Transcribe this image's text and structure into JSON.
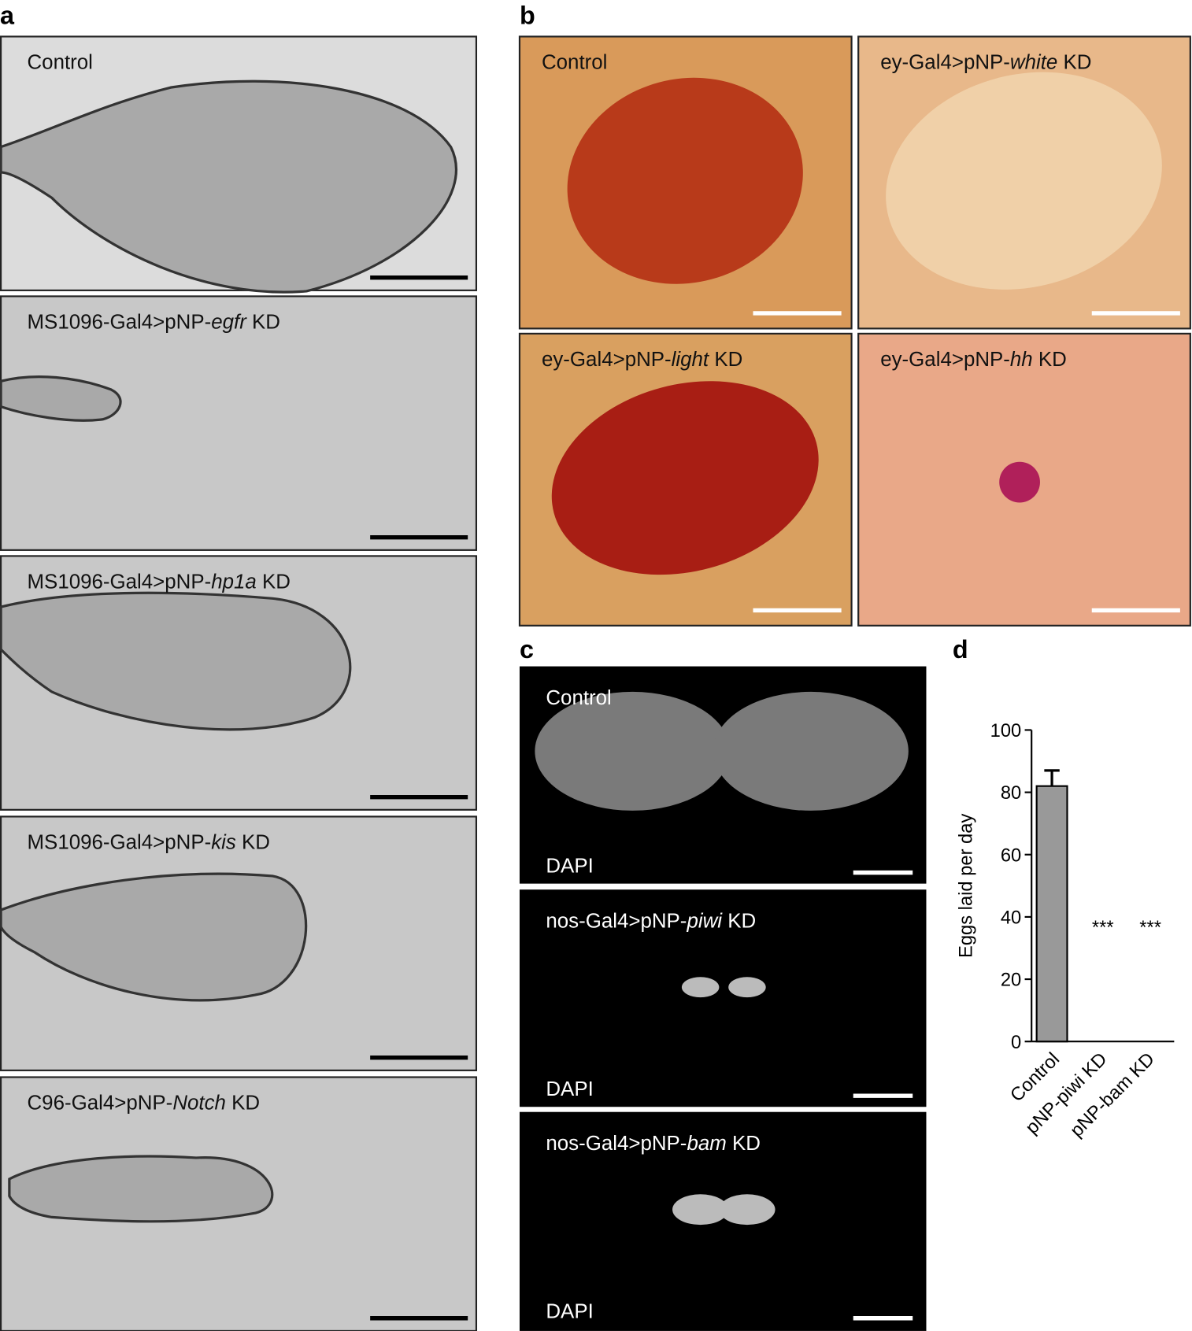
{
  "panel_a": {
    "label": "a",
    "images": [
      {
        "caption": {
          "text": "Control"
        }
      },
      {
        "caption": {
          "prefix": "MS1096-Gal4>pNP-",
          "gene": "egfr",
          "suffix": " KD"
        }
      },
      {
        "caption": {
          "prefix": "MS1096-Gal4>pNP-",
          "gene": "hp1a",
          "suffix": " KD"
        }
      },
      {
        "caption": {
          "prefix": "MS1096-Gal4>pNP-",
          "gene": "kis",
          "suffix": " KD"
        }
      },
      {
        "caption": {
          "prefix": "C96-Gal4>pNP-",
          "gene": "Notch",
          "suffix": " KD"
        }
      }
    ]
  },
  "panel_b": {
    "label": "b",
    "images": [
      {
        "caption": {
          "text": "Control"
        }
      },
      {
        "caption": {
          "prefix": "ey-Gal4>pNP-",
          "gene": "white",
          "suffix": " KD"
        }
      },
      {
        "caption": {
          "prefix": "ey-Gal4>pNP-",
          "gene": "light",
          "suffix": " KD"
        }
      },
      {
        "caption": {
          "prefix": "ey-Gal4>pNP-",
          "gene": "hh",
          "suffix": " KD"
        }
      }
    ]
  },
  "panel_c": {
    "label": "c",
    "images": [
      {
        "caption": {
          "text": "Control"
        },
        "stain": "DAPI"
      },
      {
        "caption": {
          "prefix": "nos-Gal4>pNP-",
          "gene": "piwi",
          "suffix": " KD"
        },
        "stain": "DAPI"
      },
      {
        "caption": {
          "prefix": "nos-Gal4>pNP-",
          "gene": "bam",
          "suffix": " KD"
        },
        "stain": "DAPI"
      }
    ]
  },
  "chart_data": {
    "type": "bar",
    "panel_label": "d",
    "y_label": "Eggs laid per day",
    "categories": [
      "Control",
      "pNP-piwi KD",
      "pNP-bam KD"
    ],
    "values": [
      82,
      0,
      0
    ],
    "errors": [
      5,
      null,
      null
    ],
    "significance": [
      null,
      "***",
      "***"
    ],
    "color": "#999999",
    "ylim": [
      0,
      100
    ],
    "yticks": [
      0,
      20,
      40,
      60,
      80,
      100
    ]
  }
}
